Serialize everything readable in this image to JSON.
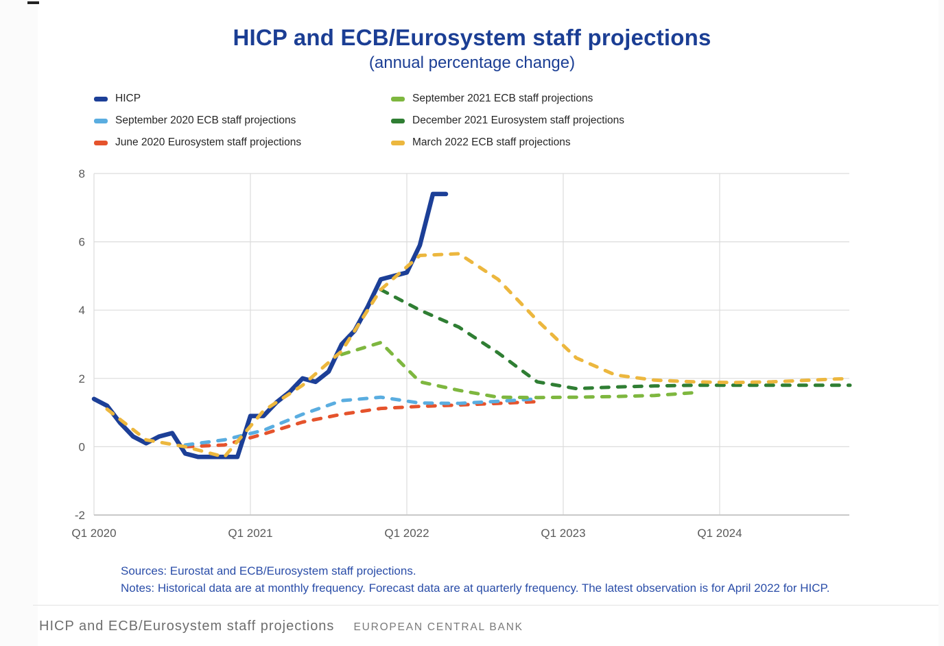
{
  "page": {
    "title": "HICP and ECB/Eurosystem staff projections",
    "subtitle": "(annual percentage change)",
    "sources": "Sources: Eurostat and ECB/Eurosystem staff projections.",
    "notes": "Notes: Historical data are at monthly frequency. Forecast data are at quarterly frequency. The latest observation is for April 2022 for HICP.",
    "footer_title": "HICP and ECB/Eurosystem staff projections",
    "footer_org": "EUROPEAN CENTRAL BANK"
  },
  "colors": {
    "accent_blue": "#1b3e94",
    "sources_blue": "#2a4da8",
    "grid": "#dcdcdc",
    "axis_line": "#c8c8c8",
    "axis_text": "#595959",
    "footer_text": "#6e6e6e"
  },
  "chart_data": {
    "type": "line",
    "title": "HICP and ECB/Eurosystem staff projections",
    "subtitle": "(annual percentage change)",
    "grid": true,
    "legend_position": "top",
    "y_axis": {
      "min": -2,
      "max": 8,
      "ticks": [
        8,
        6,
        4,
        2,
        0,
        -2
      ]
    },
    "x_axis": {
      "ticks": [
        {
          "label": "Q1 2020",
          "month_index": 0
        },
        {
          "label": "Q1 2021",
          "month_index": 12
        },
        {
          "label": "Q1 2022",
          "month_index": 24
        },
        {
          "label": "Q1 2023",
          "month_index": 36
        },
        {
          "label": "Q1 2024",
          "month_index": 48
        }
      ]
    },
    "legend": {
      "columns": [
        [
          {
            "label": "HICP",
            "color": "#1c3f97"
          },
          {
            "label": "September 2020 ECB staff projections",
            "color": "#5aade0"
          },
          {
            "label": "June 2020 Eurosystem staff projections",
            "color": "#e5532c"
          }
        ],
        [
          {
            "label": "September 2021 ECB staff projections",
            "color": "#7eb73f"
          },
          {
            "label": "December 2021 Eurosystem staff projections",
            "color": "#2f7e33"
          },
          {
            "label": "March 2022 ECB staff projections",
            "color": "#ecb73e"
          }
        ]
      ]
    },
    "series": [
      {
        "key": "jun2020",
        "name": "June 2020 Eurosystem staff projections",
        "color": "#e5532c",
        "style": "dashed",
        "frequency": "quarterly",
        "start": "2020-Q3",
        "values": [
          0.0,
          0.05,
          0.37,
          0.72,
          0.95,
          1.12,
          1.18,
          1.22,
          1.27,
          1.32
        ]
      },
      {
        "key": "sep2020",
        "name": "September 2020 ECB staff projections",
        "color": "#5aade0",
        "style": "dashed",
        "frequency": "quarterly",
        "start": "2020-Q3",
        "values": [
          0.05,
          0.2,
          0.48,
          0.95,
          1.35,
          1.45,
          1.28,
          1.27,
          1.33,
          1.4
        ]
      },
      {
        "key": "sep2021",
        "name": "September 2021 ECB staff projections",
        "color": "#7eb73f",
        "style": "dashed",
        "frequency": "quarterly",
        "start": "2021-Q3",
        "values": [
          2.7,
          3.05,
          1.9,
          1.65,
          1.45,
          1.44,
          1.45,
          1.47,
          1.5,
          1.58
        ]
      },
      {
        "key": "dec2021",
        "name": "December 2021 Eurosystem staff projections",
        "color": "#2f7e33",
        "style": "dashed",
        "frequency": "quarterly",
        "start": "2021-Q4",
        "values": [
          4.6,
          4.0,
          3.5,
          2.75,
          1.9,
          1.7,
          1.75,
          1.78,
          1.8,
          1.8,
          1.8,
          1.8,
          1.8
        ]
      },
      {
        "key": "hicp",
        "name": "HICP",
        "color": "#1c3f97",
        "style": "solid",
        "frequency": "monthly",
        "start": "2020-01",
        "values": [
          1.4,
          1.2,
          0.7,
          0.3,
          0.1,
          0.3,
          0.4,
          -0.2,
          -0.3,
          -0.3,
          -0.3,
          -0.3,
          0.9,
          0.9,
          1.3,
          1.6,
          2.0,
          1.9,
          2.2,
          3.0,
          3.4,
          4.1,
          4.9,
          5.0,
          5.1,
          5.9,
          7.4,
          7.4
        ]
      },
      {
        "key": "mar2022",
        "name": "March 2022 ECB staff projections",
        "color": "#ecb73e",
        "style": "dashed",
        "frequency": "quarterly",
        "start": "2020-Q1",
        "values": [
          1.1,
          0.2,
          0.0,
          -0.3,
          1.05,
          1.8,
          2.8,
          4.6,
          5.6,
          5.65,
          4.9,
          3.7,
          2.6,
          2.1,
          1.95,
          1.9,
          1.88,
          1.9,
          1.95,
          2.0
        ]
      }
    ]
  }
}
